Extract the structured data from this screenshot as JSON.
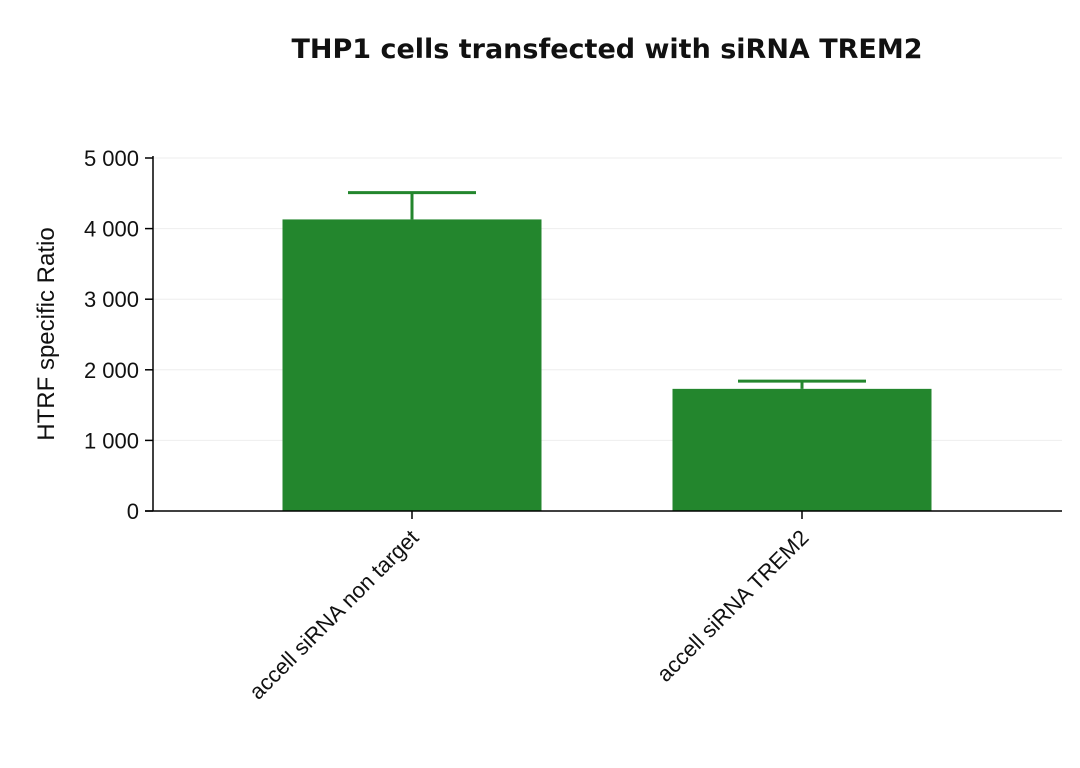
{
  "chart_data": {
    "type": "bar",
    "title": "THP1 cells transfected with siRNA TREM2",
    "xlabel": "",
    "ylabel": "HTRF specific Ratio",
    "ylim": [
      0,
      5000
    ],
    "yticks": [
      0,
      1000,
      2000,
      3000,
      4000,
      5000
    ],
    "ytick_labels": [
      "0",
      "1 000",
      "2 000",
      "3 000",
      "4 000",
      "5 000"
    ],
    "grid": true,
    "categories": [
      "accell siRNA non target",
      "accell siRNA TREM2"
    ],
    "values": [
      4130,
      1730
    ],
    "error_upper": [
      4510,
      1840
    ],
    "bar_color": "#23862d",
    "error_color": "#23862d"
  }
}
